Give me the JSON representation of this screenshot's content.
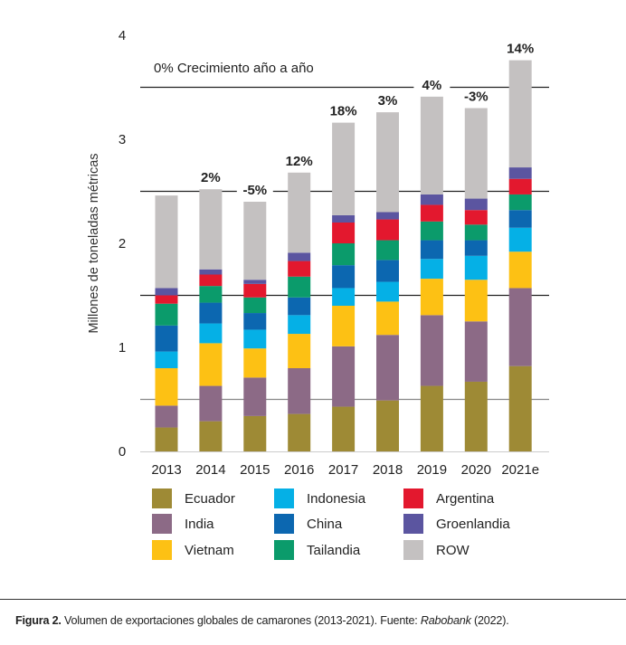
{
  "chart_data": {
    "type": "bar",
    "stacked": true,
    "ylabel": "Millones de toneladas métricas",
    "xlabel": "",
    "ylim": [
      0,
      4
    ],
    "yticks": [
      "0",
      "1",
      "2",
      "3",
      "4"
    ],
    "annotation": "0% Crecimiento año a año",
    "categories": [
      "2013",
      "2014",
      "2015",
      "2016",
      "2017",
      "2018",
      "2019",
      "2020",
      "2021e"
    ],
    "growth_labels": [
      "",
      "2%",
      "-5%",
      "12%",
      "18%",
      "3%",
      "4%",
      "-3%",
      "14%"
    ],
    "series": [
      {
        "name": "Ecuador",
        "color": "#9e8a35",
        "values": [
          0.23,
          0.29,
          0.34,
          0.36,
          0.43,
          0.49,
          0.63,
          0.67,
          0.82
        ]
      },
      {
        "name": "India",
        "color": "#8c6a86",
        "values": [
          0.21,
          0.34,
          0.37,
          0.44,
          0.58,
          0.63,
          0.68,
          0.58,
          0.75
        ]
      },
      {
        "name": "Vietnam",
        "color": "#fdc114",
        "values": [
          0.36,
          0.41,
          0.28,
          0.33,
          0.39,
          0.32,
          0.35,
          0.4,
          0.35
        ]
      },
      {
        "name": "Indonesia",
        "color": "#05b0e6",
        "values": [
          0.16,
          0.19,
          0.18,
          0.18,
          0.17,
          0.19,
          0.19,
          0.23,
          0.23
        ]
      },
      {
        "name": "China",
        "color": "#0c67b0",
        "values": [
          0.25,
          0.2,
          0.16,
          0.17,
          0.22,
          0.21,
          0.18,
          0.15,
          0.17
        ]
      },
      {
        "name": "Tailandia",
        "color": "#0b9b6b",
        "values": [
          0.21,
          0.16,
          0.15,
          0.2,
          0.21,
          0.19,
          0.18,
          0.15,
          0.15
        ]
      },
      {
        "name": "Argentina",
        "color": "#e3182e",
        "values": [
          0.08,
          0.11,
          0.13,
          0.15,
          0.2,
          0.2,
          0.16,
          0.14,
          0.15
        ]
      },
      {
        "name": "Groenlandia",
        "color": "#5b55a0",
        "values": [
          0.07,
          0.05,
          0.04,
          0.08,
          0.07,
          0.07,
          0.1,
          0.11,
          0.11
        ]
      },
      {
        "name": "ROW",
        "color": "#c4c1c1",
        "values": [
          0.89,
          0.77,
          0.75,
          0.77,
          0.89,
          0.96,
          0.94,
          0.87,
          1.03
        ]
      }
    ],
    "legend_order": [
      "Ecuador",
      "Indonesia",
      "Argentina",
      "India",
      "China",
      "Groenlandia",
      "Vietnam",
      "Tailandia",
      "ROW"
    ],
    "legend_position": "bottom"
  },
  "caption": {
    "label": "Figura 2.",
    "text": " Volumen de exportaciones globales de camarones (2013-2021). Fuente: ",
    "source": "Rabobank",
    "suffix": " (2022)."
  }
}
